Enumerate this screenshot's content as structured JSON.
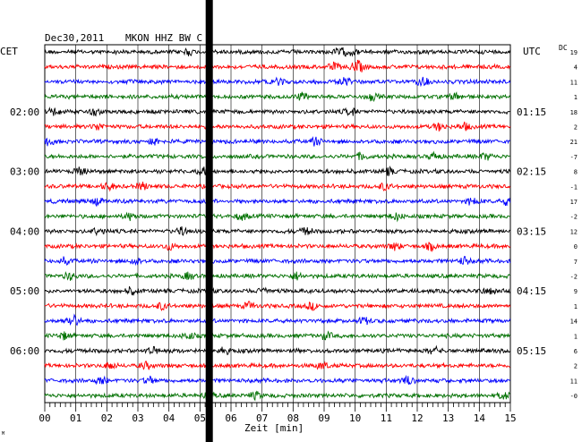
{
  "header": {
    "date": "Dec30,2011",
    "station": "MKON HHZ BW C",
    "dc_label": "DC"
  },
  "chart_data": {
    "type": "line",
    "title": "Dec30,2011   MKON HHZ BW C",
    "xlabel": "Zeit [min]",
    "xlim": [
      0,
      15
    ],
    "x_ticks": [
      "00",
      "01",
      "02",
      "03",
      "04",
      "05",
      "06",
      "07",
      "08",
      "09",
      "10",
      "11",
      "12",
      "13",
      "14",
      "15"
    ],
    "left_timezone": "CET",
    "right_timezone": "UTC",
    "left_hour_labels": [
      "02:00",
      "03:00",
      "04:00",
      "05:00",
      "06:00"
    ],
    "right_hour_labels": [
      "01:15",
      "02:15",
      "03:15",
      "04:15",
      "05:15"
    ],
    "trace_count": 24,
    "trace_colors": [
      "#000000",
      "#ff0000",
      "#0000ff",
      "#007000"
    ],
    "dc_offsets": [
      "19",
      "4",
      "11",
      "1",
      "18",
      "2",
      "21",
      "-7",
      "8",
      "-1",
      "17",
      "-2",
      "12",
      "0",
      "7",
      "-2",
      "9",
      "1",
      "14",
      "1",
      "6",
      "2",
      "11",
      "-0"
    ],
    "gap_marker_minute": 5.3,
    "footnote": "M"
  }
}
